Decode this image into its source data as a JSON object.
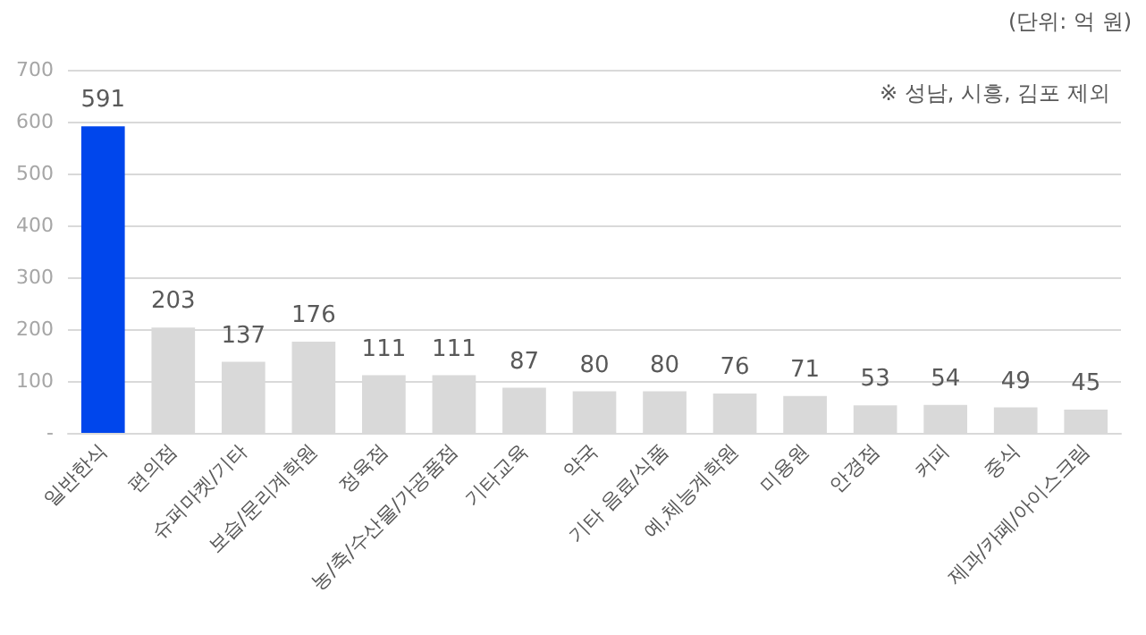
{
  "chart_data": {
    "type": "bar",
    "categories": [
      "일반한식",
      "편의점",
      "슈퍼마켓/기타",
      "보습/문리계학원",
      "정육점",
      "농/축/수산물/가공품점",
      "기타교육",
      "약국",
      "기타 음료/식품",
      "예,체능계학원",
      "미용원",
      "안경점",
      "커피",
      "중식",
      "제과/카페/아이스크림"
    ],
    "values": [
      591,
      203,
      137,
      176,
      111,
      111,
      87,
      80,
      80,
      76,
      71,
      53,
      54,
      49,
      45
    ],
    "colors": [
      "#0046ec",
      "#d9d9d9",
      "#d9d9d9",
      "#d9d9d9",
      "#d9d9d9",
      "#d9d9d9",
      "#d9d9d9",
      "#d9d9d9",
      "#d9d9d9",
      "#d9d9d9",
      "#d9d9d9",
      "#d9d9d9",
      "#d9d9d9",
      "#d9d9d9",
      "#d9d9d9"
    ],
    "ylim": [
      0,
      700
    ],
    "yticks": [
      {
        "value": 0,
        "label": "-"
      },
      100,
      200,
      300,
      400,
      500,
      600,
      700
    ],
    "grid": "y",
    "data_labels": true,
    "annotations": [
      "(단위: 억 원)",
      "※ 성남, 시흥, 김포 제외"
    ]
  }
}
